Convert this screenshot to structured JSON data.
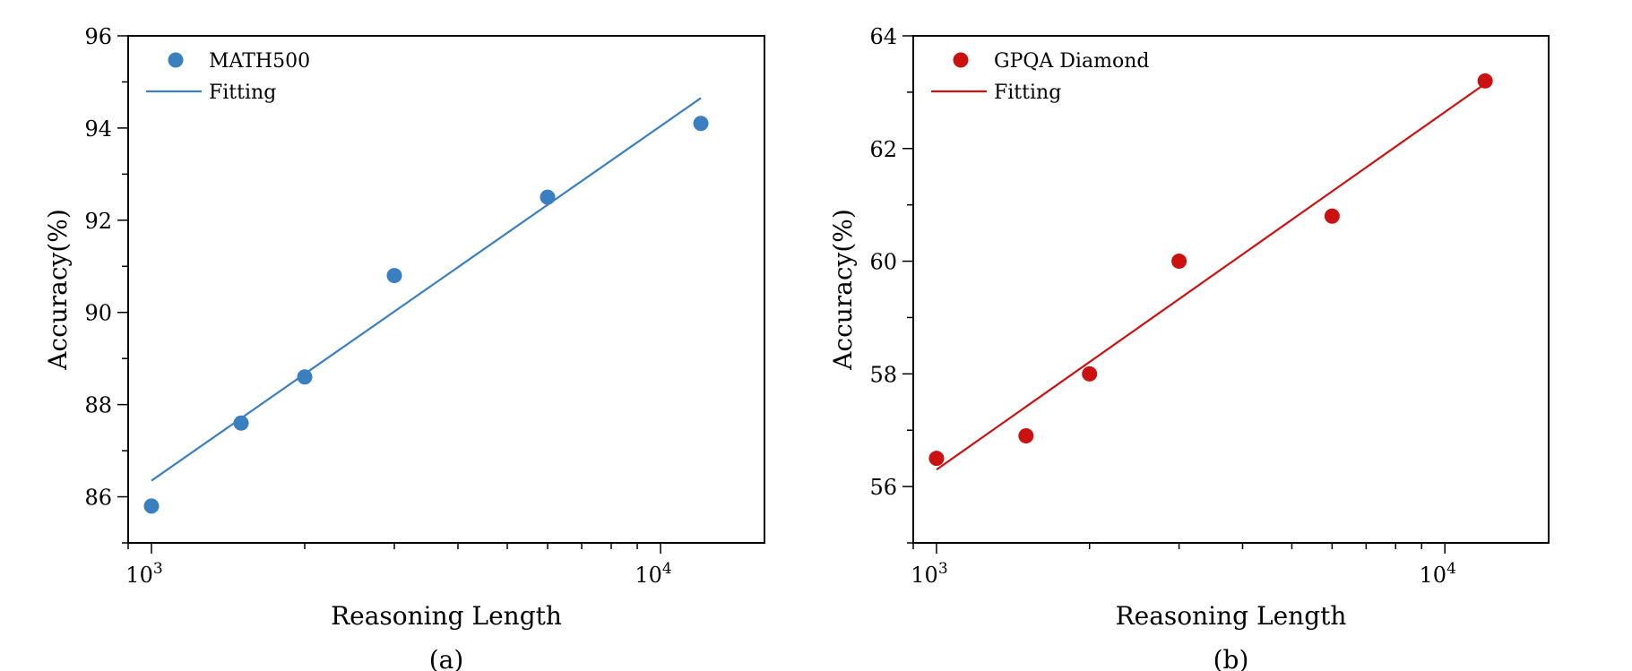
{
  "chart_data": [
    {
      "type": "scatter",
      "caption": "(a)",
      "xlabel": "Reasoning Length",
      "ylabel": "Accuracy(%)",
      "xscale": "log",
      "xlim": [
        900,
        16000
      ],
      "ylim": [
        85,
        96
      ],
      "yticks": [
        86,
        88,
        90,
        92,
        94,
        96
      ],
      "xtick_labels": [
        {
          "base": "10",
          "exp": "3",
          "value": 1000
        },
        {
          "base": "10",
          "exp": "4",
          "value": 10000
        }
      ],
      "legend_position": "top-left",
      "color": "#3a7fbf",
      "series": [
        {
          "name": "MATH500",
          "marker": "circle",
          "x": [
            1000,
            1500,
            2000,
            3000,
            6000,
            12000
          ],
          "y": [
            85.8,
            87.6,
            88.6,
            90.8,
            92.5,
            94.1
          ]
        },
        {
          "name": "Fitting",
          "marker": "line",
          "x": [
            1000,
            12000
          ],
          "y": [
            86.35,
            94.65
          ]
        }
      ]
    },
    {
      "type": "scatter",
      "caption": "(b)",
      "xlabel": "Reasoning Length",
      "ylabel": "Accuracy(%)",
      "xscale": "log",
      "xlim": [
        900,
        16000
      ],
      "ylim": [
        55,
        64
      ],
      "yticks": [
        56,
        58,
        60,
        62,
        64
      ],
      "xtick_labels": [
        {
          "base": "10",
          "exp": "3",
          "value": 1000
        },
        {
          "base": "10",
          "exp": "4",
          "value": 10000
        }
      ],
      "legend_position": "top-left",
      "color": "#cc1111",
      "series": [
        {
          "name": "GPQA Diamond",
          "marker": "circle",
          "x": [
            1000,
            1500,
            2000,
            3000,
            6000,
            12000
          ],
          "y": [
            56.5,
            56.9,
            58.0,
            60.0,
            60.8,
            63.2
          ]
        },
        {
          "name": "Fitting",
          "marker": "line",
          "x": [
            1000,
            12000
          ],
          "y": [
            56.3,
            63.15
          ]
        }
      ]
    }
  ]
}
